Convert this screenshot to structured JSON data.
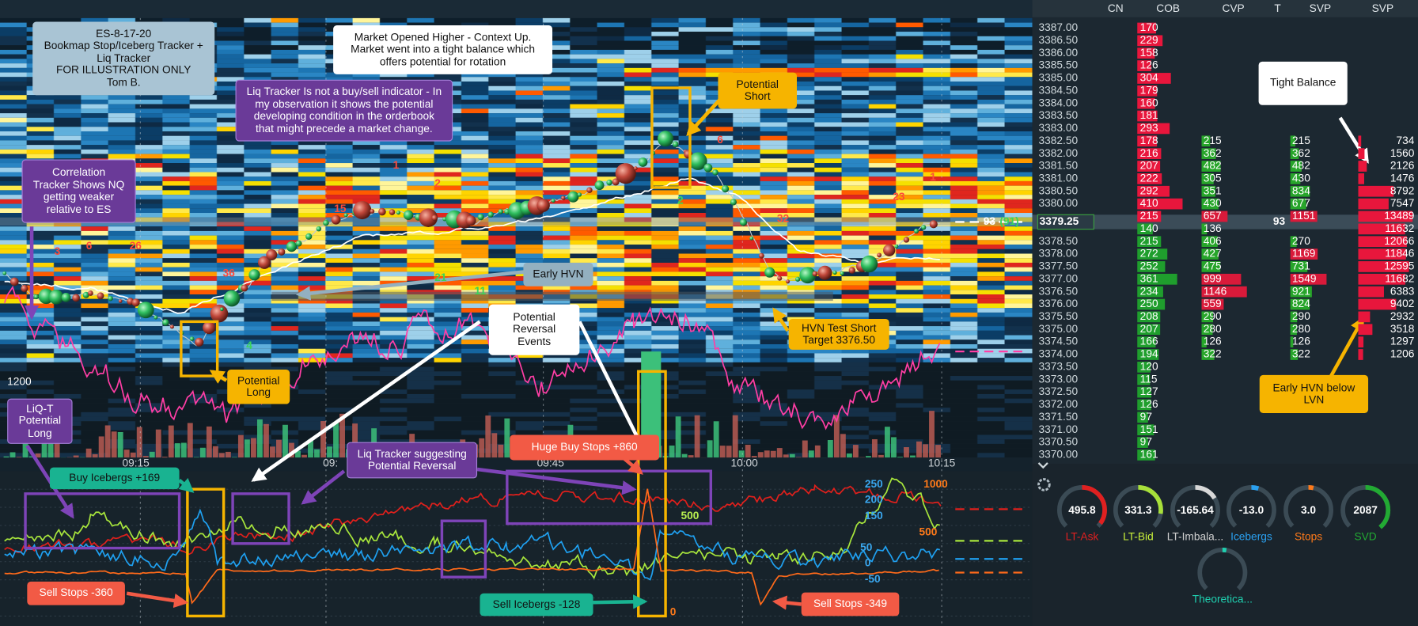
{
  "chart": {
    "annotations": [
      {
        "lines": [
          "ES-8-17-20",
          "Bookmap Stop/Iceberg Tracker +",
          "Liq Tracker",
          "FOR ILLUSTRATION ONLY",
          "Tom B."
        ]
      },
      {
        "lines": [
          "Market Opened Higher - Context Up.",
          "Market went into a tight balance which",
          "offers potential for rotation"
        ]
      },
      {
        "lines": [
          "Liq Tracker Is not a buy/sell indicator - In",
          "my observation it shows the potential",
          "developing condition in the orderbook",
          "that might precede a market change."
        ]
      },
      {
        "lines": [
          "Correlation",
          "Tracker Shows NQ",
          "getting weaker",
          "relative to ES"
        ]
      },
      {
        "lines": [
          "Potential",
          "Short"
        ]
      },
      {
        "lines": [
          "Tight Balance"
        ]
      },
      {
        "lines": [
          "Early HVN"
        ]
      },
      {
        "lines": [
          "Potential",
          "Reversal",
          "Events"
        ]
      },
      {
        "lines": [
          "HVN Test Short",
          "Target 3376.50"
        ]
      },
      {
        "lines": [
          "Potential",
          "Long"
        ]
      },
      {
        "lines": [
          "LiQ-T",
          "Potential",
          "Long"
        ]
      },
      {
        "lines": [
          "Early HVN below",
          "LVN"
        ]
      },
      {
        "lines": [
          "Huge Buy Stops +860"
        ]
      },
      {
        "lines": [
          "Liq Tracker suggesting",
          "Potential Reversal"
        ]
      },
      {
        "lines": [
          "Buy Icebergs +169"
        ]
      },
      {
        "lines": [
          "Sell Stops -360"
        ]
      },
      {
        "lines": [
          "Sell Icebergs -128"
        ]
      },
      {
        "lines": [
          "Sell Stops -349"
        ]
      }
    ],
    "time_labels": [
      "09:15",
      "09:",
      "09:45",
      "10:00",
      "10:15"
    ],
    "axis_label": "1200",
    "markers": [
      "3",
      "6",
      "26",
      "36",
      "1",
      "2",
      "15",
      "6",
      "2",
      "32",
      "23",
      "1",
      "4",
      "21",
      "11",
      "500",
      "250",
      "200",
      "150",
      "50",
      "0",
      "-50",
      "1000",
      "500",
      "0"
    ]
  },
  "ladder": {
    "headers": [
      "CN",
      "COB",
      "CVP",
      "T",
      "SVP",
      "SVP"
    ],
    "current": {
      "cn": "93",
      "cn_paren": "(91)",
      "price": "3379.25",
      "t": "93"
    },
    "rows": [
      {
        "price": "3387.00",
        "cob": 170,
        "cvp": null,
        "t": null,
        "svp": null
      },
      {
        "price": "3386.50",
        "cob": 229,
        "cvp": null,
        "t": null,
        "svp": null
      },
      {
        "price": "3386.00",
        "cob": 158,
        "cvp": null,
        "t": null,
        "svp": null
      },
      {
        "price": "3385.50",
        "cob": 126,
        "cvp": null,
        "t": null,
        "svp": null
      },
      {
        "price": "3385.00",
        "cob": 304,
        "cvp": null,
        "t": null,
        "svp": null
      },
      {
        "price": "3384.50",
        "cob": 179,
        "cvp": null,
        "t": null,
        "svp": null
      },
      {
        "price": "3384.00",
        "cob": 160,
        "cvp": null,
        "t": null,
        "svp": null
      },
      {
        "price": "3383.50",
        "cob": 181,
        "cvp": null,
        "t": null,
        "svp": null
      },
      {
        "price": "3383.00",
        "cob": 293,
        "cvp": null,
        "t": null,
        "svp": null
      },
      {
        "price": "3382.50",
        "cob": 178,
        "cvp": 215,
        "t": 215,
        "svp": 734
      },
      {
        "price": "3382.00",
        "cob": 216,
        "cvp": 362,
        "t": 362,
        "svp": 1560
      },
      {
        "price": "3381.50",
        "cob": 207,
        "cvp": 482,
        "t": 482,
        "svp": 2126
      },
      {
        "price": "3381.00",
        "cob": 222,
        "cvp": 305,
        "t": 430,
        "svp": 1476
      },
      {
        "price": "3380.50",
        "cob": 292,
        "cvp": 351,
        "t": 834,
        "svp": 8792
      },
      {
        "price": "3380.00",
        "cob": 410,
        "cvp": 430,
        "t": 677,
        "svp": 7547
      },
      {
        "price": null,
        "cob": 215,
        "cvp": 657,
        "t": 1151,
        "svp": 13489
      },
      {
        "price": null,
        "cob": 140,
        "cvp": 136,
        "t": null,
        "svp": 11632
      },
      {
        "price": "3378.50",
        "cob": 215,
        "cvp": 406,
        "t": 270,
        "svp": 12066
      },
      {
        "price": "3378.00",
        "cob": 272,
        "cvp": 427,
        "t": 1169,
        "svp": 11846
      },
      {
        "price": "3377.50",
        "cob": 252,
        "cvp": 475,
        "t": 731,
        "svp": 12595
      },
      {
        "price": "3377.00",
        "cob": 361,
        "cvp": 999,
        "t": 1549,
        "svp": 11682
      },
      {
        "price": "3376.50",
        "cob": 234,
        "cvp": 1146,
        "t": 921,
        "svp": 6383
      },
      {
        "price": "3376.00",
        "cob": 250,
        "cvp": 559,
        "t": 824,
        "svp": 9402
      },
      {
        "price": "3375.50",
        "cob": 208,
        "cvp": 290,
        "t": 290,
        "svp": 2932
      },
      {
        "price": "3375.00",
        "cob": 207,
        "cvp": 280,
        "t": 280,
        "svp": 3518
      },
      {
        "price": "3374.50",
        "cob": 166,
        "cvp": 126,
        "t": 126,
        "svp": 1297
      },
      {
        "price": "3374.00",
        "cob": 194,
        "cvp": 322,
        "t": 322,
        "svp": 1206
      },
      {
        "price": "3373.50",
        "cob": 120,
        "cvp": null,
        "t": null,
        "svp": null
      },
      {
        "price": "3373.00",
        "cob": 115,
        "cvp": null,
        "t": null,
        "svp": null
      },
      {
        "price": "3372.50",
        "cob": 127,
        "cvp": null,
        "t": null,
        "svp": null
      },
      {
        "price": "3372.00",
        "cob": 126,
        "cvp": null,
        "t": null,
        "svp": null
      },
      {
        "price": "3371.50",
        "cob": 97,
        "cvp": null,
        "t": null,
        "svp": null
      },
      {
        "price": "3371.00",
        "cob": 151,
        "cvp": null,
        "t": null,
        "svp": null
      },
      {
        "price": "3370.50",
        "cob": 97,
        "cvp": null,
        "t": null,
        "svp": null
      },
      {
        "price": "3370.00",
        "cob": 161,
        "cvp": null,
        "t": null,
        "svp": null
      }
    ]
  },
  "gauges": [
    {
      "value": "495.8",
      "label": "LT-Ask"
    },
    {
      "value": "331.3",
      "label": "LT-Bid"
    },
    {
      "value": "-165.64",
      "label": "LT-Imbala..."
    },
    {
      "value": "-13.0",
      "label": "Icebergs"
    },
    {
      "value": "3.0",
      "label": "Stops"
    },
    {
      "value": "2087",
      "label": "SVD"
    },
    {
      "value": null,
      "label": "Theoretica..."
    }
  ]
}
